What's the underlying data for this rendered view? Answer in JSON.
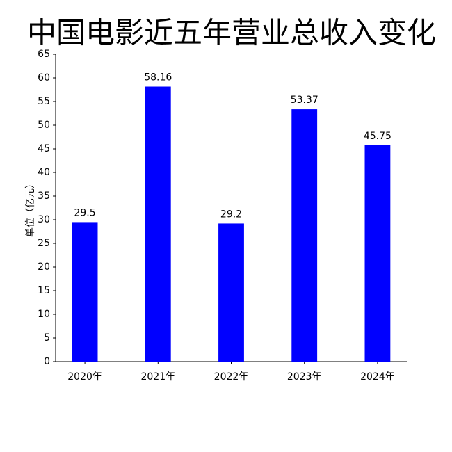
{
  "chart_data": {
    "type": "bar",
    "title": "中国电影近五年营业总收入变化",
    "y_label": "单位（亿元）",
    "categories": [
      "2020年",
      "2021年",
      "2022年",
      "2023年",
      "2024年"
    ],
    "values": [
      29.5,
      58.16,
      29.2,
      53.37,
      45.75
    ],
    "color": "#0000ff",
    "ylim": [
      0,
      65
    ],
    "yticks": [
      0,
      5,
      10,
      15,
      20,
      25,
      30,
      35,
      40,
      45,
      50,
      55,
      60,
      65
    ],
    "grid": false
  }
}
